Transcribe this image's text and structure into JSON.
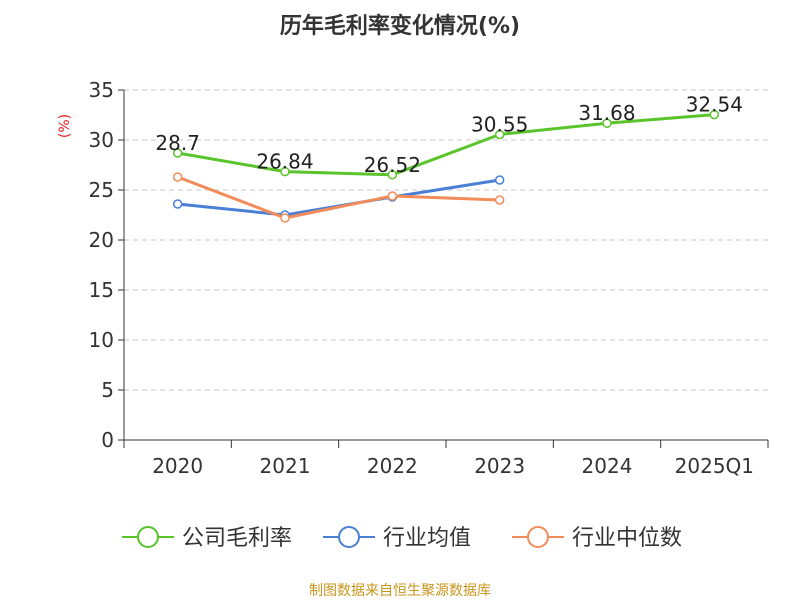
{
  "chart_data": {
    "type": "line",
    "title": "历年毛利率变化情况(%)",
    "ylabel": "(%)",
    "xlabel": "",
    "categories": [
      "2020",
      "2021",
      "2022",
      "2023",
      "2024",
      "2025Q1"
    ],
    "ylim": [
      0,
      35
    ],
    "yticks": [
      0,
      5,
      10,
      15,
      20,
      25,
      30,
      35
    ],
    "grid": true,
    "legend_position": "bottom",
    "series": [
      {
        "name": "公司毛利率",
        "color": "#5ac42b",
        "values": [
          28.7,
          26.84,
          26.52,
          30.55,
          31.68,
          32.54
        ],
        "labels": [
          "28.7",
          "26.84",
          "26.52",
          "30.55",
          "31.68",
          "32.54"
        ]
      },
      {
        "name": "行业均值",
        "color": "#4a7fd6",
        "values": [
          23.6,
          22.5,
          24.3,
          26.0,
          null,
          null
        ]
      },
      {
        "name": "行业中位数",
        "color": "#f28c5a",
        "values": [
          26.3,
          22.2,
          24.4,
          24.0,
          null,
          null
        ]
      }
    ]
  },
  "footer": {
    "source": "制图数据来自恒生聚源数据库"
  }
}
